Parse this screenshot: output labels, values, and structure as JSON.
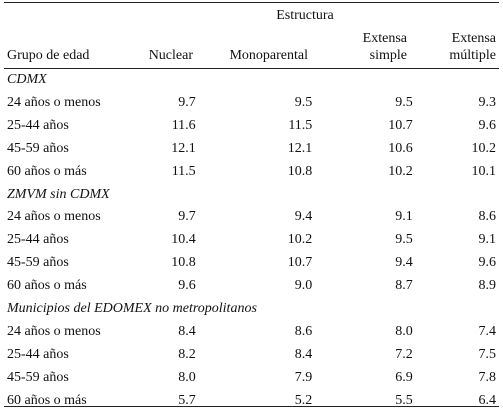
{
  "table": {
    "structure_header": "Estructura",
    "columns": {
      "group": "Grupo de edad",
      "nuclear": "Nuclear",
      "monoparental": "Monoparental",
      "extensa_simple_line1": "Extensa",
      "extensa_simple_line2": "simple",
      "extensa_multiple_line1": "Extensa",
      "extensa_multiple_line2": "múltiple"
    },
    "sections": [
      {
        "title": "CDMX",
        "rows": [
          {
            "group": "24 años o menos",
            "nuclear": "9.7",
            "monoparental": "9.5",
            "extensa_simple": "9.5",
            "extensa_multiple": "9.3"
          },
          {
            "group": "25-44 años",
            "nuclear": "11.6",
            "monoparental": "11.5",
            "extensa_simple": "10.7",
            "extensa_multiple": "9.6"
          },
          {
            "group": "45-59 años",
            "nuclear": "12.1",
            "monoparental": "12.1",
            "extensa_simple": "10.6",
            "extensa_multiple": "10.2"
          },
          {
            "group": "60 años o más",
            "nuclear": "11.5",
            "monoparental": "10.8",
            "extensa_simple": "10.2",
            "extensa_multiple": "10.1"
          }
        ]
      },
      {
        "title": "ZMVM sin CDMX",
        "rows": [
          {
            "group": "24 años o menos",
            "nuclear": "9.7",
            "monoparental": "9.4",
            "extensa_simple": "9.1",
            "extensa_multiple": "8.6"
          },
          {
            "group": "25-44 años",
            "nuclear": "10.4",
            "monoparental": "10.2",
            "extensa_simple": "9.5",
            "extensa_multiple": "9.1"
          },
          {
            "group": "45-59 años",
            "nuclear": "10.8",
            "monoparental": "10.7",
            "extensa_simple": "9.4",
            "extensa_multiple": "9.6"
          },
          {
            "group": "60 años o más",
            "nuclear": "9.6",
            "monoparental": "9.0",
            "extensa_simple": "8.7",
            "extensa_multiple": "8.9"
          }
        ]
      },
      {
        "title": "Municipios del EDOMEX no metropolitanos",
        "rows": [
          {
            "group": "24 años o menos",
            "nuclear": "8.4",
            "monoparental": "8.6",
            "extensa_simple": "8.0",
            "extensa_multiple": "7.4"
          },
          {
            "group": "25-44 años",
            "nuclear": "8.2",
            "monoparental": "8.4",
            "extensa_simple": "7.2",
            "extensa_multiple": "7.5"
          },
          {
            "group": "45-59 años",
            "nuclear": "8.0",
            "monoparental": "7.9",
            "extensa_simple": "6.9",
            "extensa_multiple": "7.8"
          },
          {
            "group": "60 años o más",
            "nuclear": "5.7",
            "monoparental": "5.2",
            "extensa_simple": "5.5",
            "extensa_multiple": "6.4"
          }
        ]
      }
    ]
  }
}
